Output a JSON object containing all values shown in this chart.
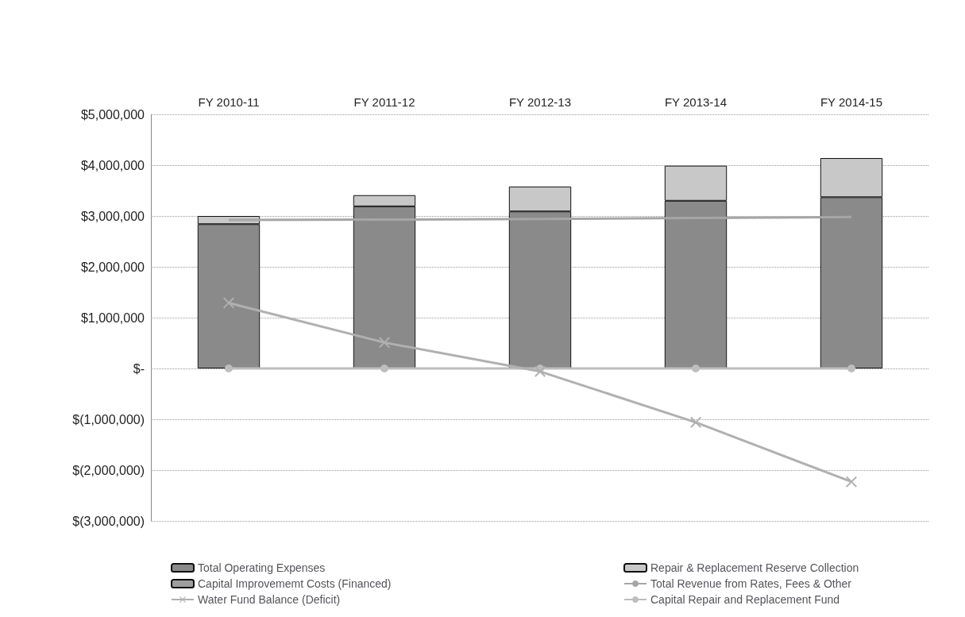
{
  "chart_data": {
    "type": "bar",
    "stacked": true,
    "categories": [
      "FY 2010-11",
      "FY 2011-12",
      "FY 2012-13",
      "FY 2013-14",
      "FY 2014-15"
    ],
    "series": [
      {
        "name": "Total Operating Expenses",
        "color": "#8a8a8a",
        "values": [
          2840000,
          3190000,
          3090000,
          3300000,
          3370000
        ]
      },
      {
        "name": "Repair & Replacement Reserve Collection",
        "color": "#c8c8c8",
        "values": [
          160000,
          220000,
          490000,
          690000,
          770000
        ]
      },
      {
        "name": "Capital Improvememt Costs (Financed)",
        "color": "#9e9e9e",
        "values": [
          null,
          null,
          null,
          null,
          null
        ]
      },
      {
        "name": "Total Revenue from Rates, Fees & Other",
        "type": "line",
        "color": "#a6a6a6",
        "marker": "none",
        "values": [
          2920000,
          2930000,
          2940000,
          2960000,
          2980000
        ]
      },
      {
        "name": "Water Fund Balance (Deficit)",
        "type": "line",
        "color": "#b0b0b0",
        "marker": "cross",
        "values": [
          1290000,
          510000,
          -60000,
          -1060000,
          -2230000
        ]
      },
      {
        "name": "Capital Repair and Replacement Fund",
        "type": "line",
        "color": "#bdbdbd",
        "marker": "circle",
        "values": [
          0,
          0,
          0,
          0,
          0
        ]
      }
    ],
    "ylim": [
      -3000000,
      5000000
    ],
    "yticks": [
      {
        "value": -3000000,
        "label": "$(3,000,000)"
      },
      {
        "value": -2000000,
        "label": "$(2,000,000)"
      },
      {
        "value": -1000000,
        "label": "$(1,000,000)"
      },
      {
        "value": 0,
        "label": "$-"
      },
      {
        "value": 1000000,
        "label": "$1,000,000"
      },
      {
        "value": 2000000,
        "label": "$2,000,000"
      },
      {
        "value": 3000000,
        "label": "$3,000,000"
      },
      {
        "value": 4000000,
        "label": "$4,000,000"
      },
      {
        "value": 5000000,
        "label": "$5,000,000"
      }
    ],
    "grid": "y",
    "legend": "bottom",
    "line_style": "solid"
  }
}
